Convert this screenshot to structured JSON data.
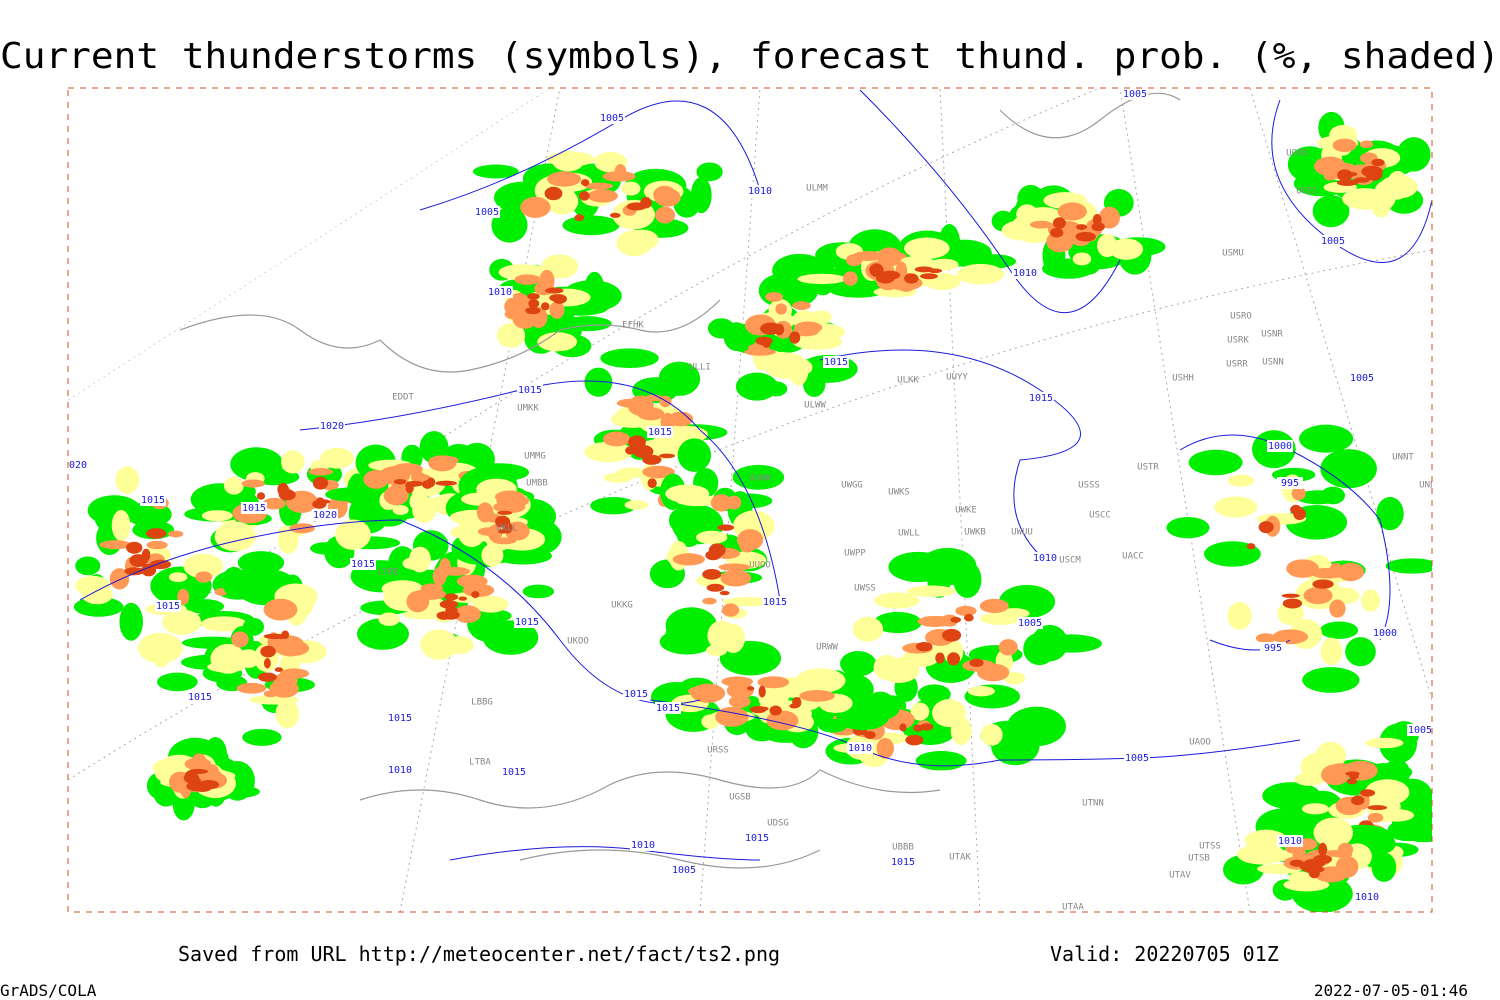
{
  "title": "Current thunderstorms (symbols), forecast thund. prob. (%, shaded)",
  "footer": {
    "saved_from": "Saved from URL http://meteocenter.net/fact/ts2.png",
    "valid": "Valid: 20220705 01Z",
    "software": "GrADS/COLA",
    "timestamp": "2022-07-05-01:46"
  },
  "isobar_labels": [
    "1005",
    "1010",
    "1005",
    "1010",
    "1015",
    "1020",
    "1015",
    "1015",
    "1015",
    "1020",
    "1015",
    "1015",
    "1015",
    "1015",
    "1015",
    "1010",
    "1015",
    "1015",
    "1015",
    "1015",
    "1015",
    "1015",
    "1010",
    "1005",
    "1010",
    "1005",
    "1010",
    "1005",
    "1005",
    "1000",
    "995",
    "995",
    "1000",
    "1005",
    "1005",
    "1010",
    "1005",
    "1015",
    "1015",
    "1010",
    "1010",
    "1020"
  ],
  "station_labels": [
    "EDDT",
    "UMKK",
    "UMMG",
    "UMBB",
    "UKLL",
    "LYBE",
    "UKOO",
    "LBBG",
    "LTBA",
    "ULLI",
    "EFHK",
    "ULKK",
    "UUYY",
    "ULWW",
    "UUWW",
    "UWGG",
    "UWKS",
    "UWKE",
    "UWKB",
    "UWUU",
    "UWLL",
    "UWPP",
    "UWSS",
    "URWW",
    "UUOO",
    "UKKG",
    "URSS",
    "UGSB",
    "UDSG",
    "UBBB",
    "UTAK",
    "UTAA",
    "UTNN",
    "UAOO",
    "USSS",
    "USCC",
    "USCM",
    "USTR",
    "USHH",
    "USRR",
    "USRK",
    "USRO",
    "USNR",
    "USNN",
    "USMU",
    "UOOO",
    "UOII",
    "UNNT",
    "UNBB",
    "ULMM",
    "UTSS",
    "UTSB",
    "UTAV",
    "UACC"
  ]
}
